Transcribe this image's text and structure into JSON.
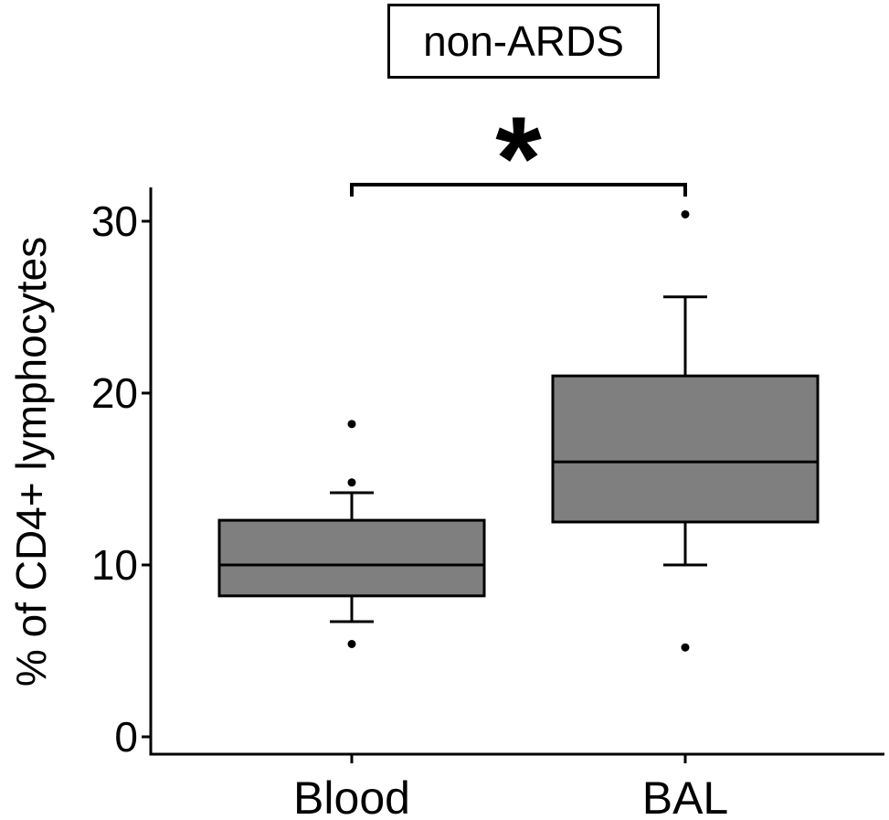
{
  "chart_data": {
    "type": "box",
    "panel_title": "non-ARDS",
    "ylabel": "% of CD4+ lymphocytes",
    "xlabel": "",
    "ylim": [
      0,
      31.9
    ],
    "yticks": [
      "0",
      "10",
      "20",
      "30"
    ],
    "categories": [
      "Blood",
      "BAL"
    ],
    "boxes": [
      {
        "category": "Blood",
        "whisker_low": 6.7,
        "q1": 8.2,
        "median": 10.0,
        "q3": 12.6,
        "whisker_high": 14.2,
        "outliers": [
          5.4,
          14.8,
          18.2
        ]
      },
      {
        "category": "BAL",
        "whisker_low": 10.0,
        "q1": 12.5,
        "median": 16.0,
        "q3": 21.0,
        "whisker_high": 25.6,
        "outliers": [
          5.2,
          30.4
        ]
      }
    ],
    "significance": {
      "from": "Blood",
      "to": "BAL",
      "label": "*"
    },
    "colors": {
      "box_fill": "#7f7f7f",
      "stroke": "#000000"
    },
    "grid": false,
    "legend": "none"
  }
}
